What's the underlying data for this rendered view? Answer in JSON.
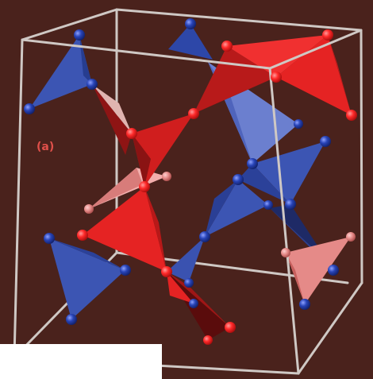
{
  "figure": {
    "panel_label": "(a)",
    "background_color": "#4a221c",
    "frame_color": "#cfc8c4",
    "tetrahedra": [
      {
        "name": "blue-tetra-top-left",
        "color": "blue",
        "shade": "mid"
      },
      {
        "name": "red-tetra-top-right",
        "color": "red",
        "shade": "bright"
      },
      {
        "name": "red-tetra-top-center",
        "color": "red",
        "shade": "dark"
      },
      {
        "name": "blue-tetra-top-center",
        "color": "blue",
        "shade": "light"
      },
      {
        "name": "red-tetra-left-center",
        "color": "red",
        "shade": "dark"
      },
      {
        "name": "pink-tetra-left-center",
        "color": "pink",
        "shade": "light"
      },
      {
        "name": "blue-tetra-right-center",
        "color": "blue",
        "shade": "mid"
      },
      {
        "name": "red-tetra-center",
        "color": "red",
        "shade": "bright"
      },
      {
        "name": "blue-tetra-center",
        "color": "blue",
        "shade": "mid"
      },
      {
        "name": "navy-tetra-right",
        "color": "navy",
        "shade": "dark"
      },
      {
        "name": "blue-tetra-bottom-left",
        "color": "blue",
        "shade": "mid"
      },
      {
        "name": "pink-tetra-bottom-right",
        "color": "pink",
        "shade": "light"
      },
      {
        "name": "red-tetra-bottom-center",
        "color": "red",
        "shade": "dark"
      }
    ],
    "colors": {
      "red_bright": "#e52323",
      "red_dark": "#8e1414",
      "pink": "#e58a88",
      "blue": "#3c55b3",
      "blue_light": "#6b7fcf",
      "navy": "#1e2a66",
      "red_ball": "#ff2a2a",
      "blue_ball": "#2844b8"
    }
  }
}
